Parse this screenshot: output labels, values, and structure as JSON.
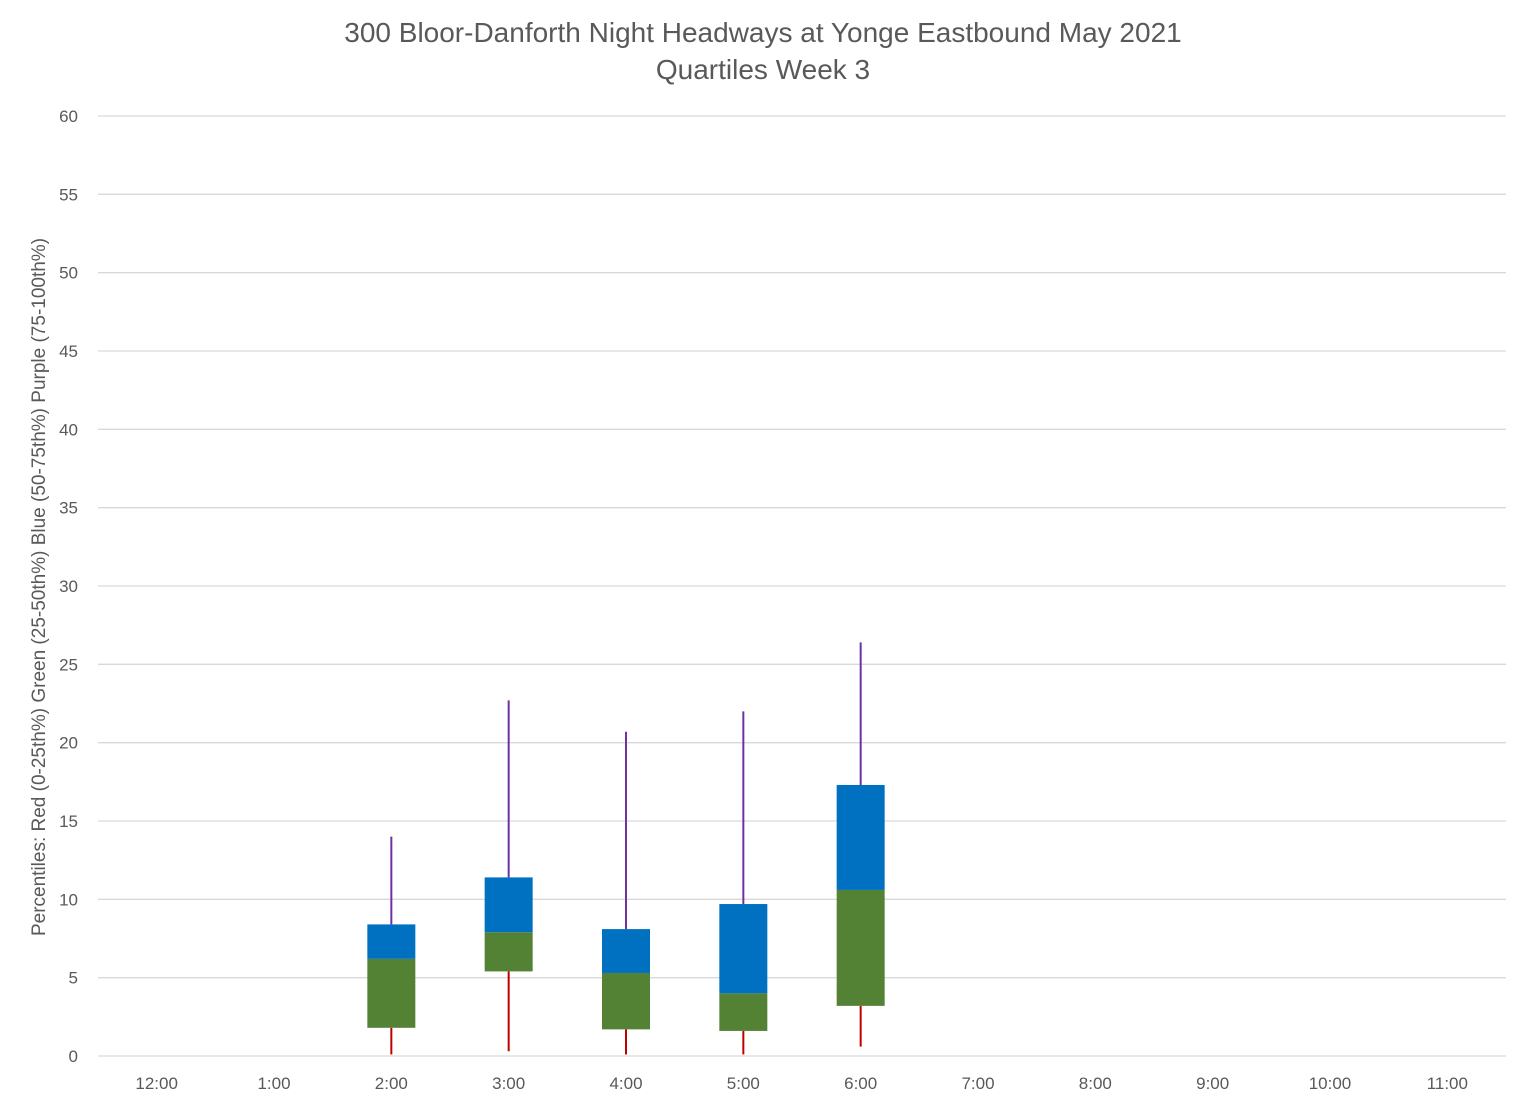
{
  "chart_data": {
    "type": "box",
    "title": "300 Bloor-Danforth Night Headways at Yonge Eastbound May 2021",
    "subtitle": "Quartiles Week 3",
    "ylabel": "Percentiles:  Red (0-25th%)  Green (25-50th%)  Blue (50-75th%)  Purple (75-100th%)",
    "xlabel": "",
    "ylim": [
      0,
      60
    ],
    "yticks": [
      0,
      5,
      10,
      15,
      20,
      25,
      30,
      35,
      40,
      45,
      50,
      55,
      60
    ],
    "grid": true,
    "categories": [
      "12:00",
      "1:00",
      "2:00",
      "3:00",
      "4:00",
      "5:00",
      "6:00",
      "7:00",
      "8:00",
      "9:00",
      "10:00",
      "11:00"
    ],
    "boxes": [
      {
        "category": "2:00",
        "min": 0.1,
        "q1": 1.8,
        "median": 6.2,
        "q3": 8.4,
        "max": 14.0
      },
      {
        "category": "3:00",
        "min": 0.3,
        "q1": 5.4,
        "median": 7.9,
        "q3": 11.4,
        "max": 22.7
      },
      {
        "category": "4:00",
        "min": 0.1,
        "q1": 1.7,
        "median": 5.3,
        "q3": 8.1,
        "max": 20.7
      },
      {
        "category": "5:00",
        "min": 0.1,
        "q1": 1.6,
        "median": 4.0,
        "q3": 9.7,
        "max": 22.0
      },
      {
        "category": "6:00",
        "min": 0.6,
        "q1": 3.2,
        "median": 10.6,
        "q3": 17.3,
        "max": 26.4
      }
    ],
    "colors": {
      "lower_whisker": "#C00000",
      "lower_box": "#548235",
      "upper_box": "#0070C0",
      "upper_whisker": "#7030A0",
      "grid": "#D9D9D9",
      "text": "#595959"
    }
  }
}
